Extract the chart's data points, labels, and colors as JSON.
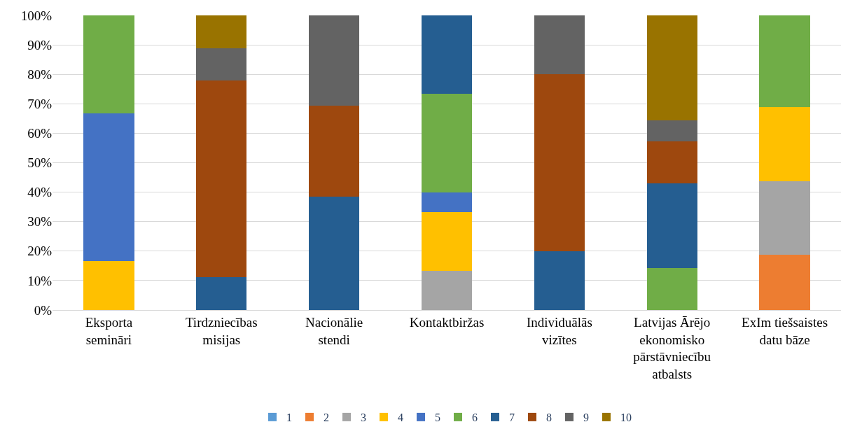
{
  "chart_data": {
    "type": "bar",
    "stacked": true,
    "categories": [
      "Eksporta semināri",
      "Tirdzniecības misijas",
      "Nacionālie stendi",
      "Kontaktbiržas",
      "Individuālās vizītes",
      "Latvijas Ārējo ekonomisko pārstāvniecību atbalsts",
      "ExIm tiešsaistes datu bāze"
    ],
    "series": [
      {
        "name": "1",
        "color": "#5b9bd5",
        "values": [
          null,
          null,
          null,
          null,
          null,
          null,
          null
        ]
      },
      {
        "name": "2",
        "color": "#ed7d31",
        "values": [
          null,
          null,
          null,
          null,
          null,
          null,
          18.8
        ]
      },
      {
        "name": "3",
        "color": "#a5a5a5",
        "values": [
          null,
          null,
          null,
          13.3,
          null,
          null,
          25
        ]
      },
      {
        "name": "4",
        "color": "#ffc000",
        "values": [
          16.7,
          null,
          null,
          20,
          null,
          null,
          25
        ]
      },
      {
        "name": "5",
        "color": "#4472c4",
        "values": [
          50,
          null,
          null,
          6.7,
          null,
          null,
          null
        ]
      },
      {
        "name": "6",
        "color": "#70ad47",
        "values": [
          33.3,
          null,
          null,
          33.3,
          null,
          14.3,
          31.2
        ]
      },
      {
        "name": "7",
        "color": "#255e91",
        "values": [
          null,
          11.1,
          38.5,
          26.7,
          20,
          28.6,
          null
        ]
      },
      {
        "name": "8",
        "color": "#9e480e",
        "values": [
          null,
          66.7,
          30.8,
          null,
          60,
          14.3,
          null
        ]
      },
      {
        "name": "9",
        "color": "#636363",
        "values": [
          null,
          11.1,
          30.7,
          null,
          20,
          7.1,
          null
        ]
      },
      {
        "name": "10",
        "color": "#997300",
        "values": [
          null,
          11.1,
          null,
          null,
          null,
          35.7,
          null
        ]
      }
    ],
    "ylim": [
      0,
      100
    ],
    "yticks": [
      {
        "value": 0,
        "label": "0%"
      },
      {
        "value": 10,
        "label": "10%"
      },
      {
        "value": 20,
        "label": "20%"
      },
      {
        "value": 30,
        "label": "30%"
      },
      {
        "value": 40,
        "label": "40%"
      },
      {
        "value": 50,
        "label": "50%"
      },
      {
        "value": 60,
        "label": "60%"
      },
      {
        "value": 70,
        "label": "70%"
      },
      {
        "value": 80,
        "label": "80%"
      },
      {
        "value": 90,
        "label": "90%"
      },
      {
        "value": 100,
        "label": "100%"
      }
    ],
    "grid": "y",
    "legend": "bottom"
  }
}
